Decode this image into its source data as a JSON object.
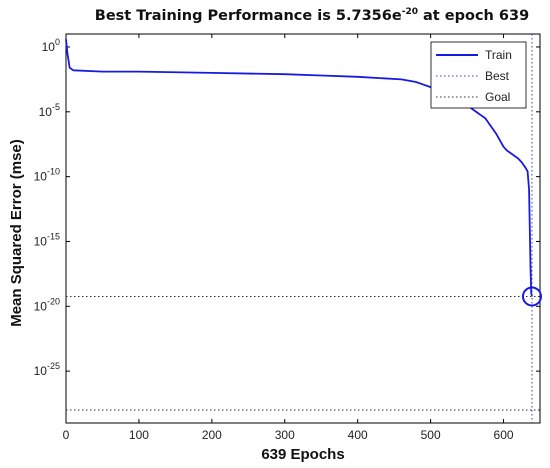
{
  "chart_data": {
    "type": "line",
    "title": "Best Training Performance is 5.7356e",
    "title_exponent": "-20",
    "title_suffix": " at epoch 639",
    "xlabel": "639 Epochs",
    "ylabel": "Mean Squared Error  (mse)",
    "xlim": [
      0,
      650
    ],
    "ylim_log10": [
      -29,
      1
    ],
    "y_scale": "log",
    "x_ticks": [
      0,
      100,
      200,
      300,
      400,
      500,
      600
    ],
    "y_ticks": [
      {
        "base": "10",
        "exp": "0",
        "value_log10": 0
      },
      {
        "base": "10",
        "exp": "-5",
        "value_log10": -5
      },
      {
        "base": "10",
        "exp": "-10",
        "value_log10": -10
      },
      {
        "base": "10",
        "exp": "-15",
        "value_log10": -15
      },
      {
        "base": "10",
        "exp": "-20",
        "value_log10": -20
      },
      {
        "base": "10",
        "exp": "-25",
        "value_log10": -25
      }
    ],
    "grid": false,
    "legend": "top-right",
    "series": [
      {
        "name": "Train",
        "color": "#1a1adf",
        "style": "solid",
        "epochs": [
          0,
          2,
          5,
          10,
          50,
          100,
          200,
          300,
          350,
          400,
          430,
          460,
          480,
          490,
          495,
          500,
          505,
          510,
          515,
          520,
          525,
          530,
          535,
          540,
          545,
          550,
          555,
          560,
          565,
          570,
          575,
          580,
          585,
          590,
          595,
          600,
          605,
          610,
          615,
          620,
          625,
          630,
          633,
          635,
          636,
          637,
          638,
          639
        ],
        "mse_log10": [
          0.6,
          -0.5,
          -1.6,
          -1.8,
          -1.9,
          -1.9,
          -2.0,
          -2.1,
          -2.2,
          -2.3,
          -2.4,
          -2.5,
          -2.7,
          -2.9,
          -3.0,
          -3.1,
          -3.2,
          -3.3,
          -3.4,
          -3.5,
          -3.6,
          -3.7,
          -3.9,
          -4.1,
          -4.3,
          -4.5,
          -4.7,
          -4.9,
          -5.1,
          -5.3,
          -5.5,
          -5.9,
          -6.3,
          -6.7,
          -7.2,
          -7.7,
          -8.0,
          -8.2,
          -8.4,
          -8.6,
          -8.9,
          -9.3,
          -9.6,
          -11.0,
          -14.0,
          -17.0,
          -19.0,
          -19.24
        ]
      },
      {
        "name": "Best",
        "color": "#2b40c4",
        "style": "dotted",
        "x_value": 639,
        "y_value_log10": -19.24
      },
      {
        "name": "Goal",
        "color": "#333333",
        "style": "dotted",
        "y_value_log10": -28
      }
    ],
    "best_point": {
      "epoch": 639,
      "mse_log10": -19.24
    }
  }
}
